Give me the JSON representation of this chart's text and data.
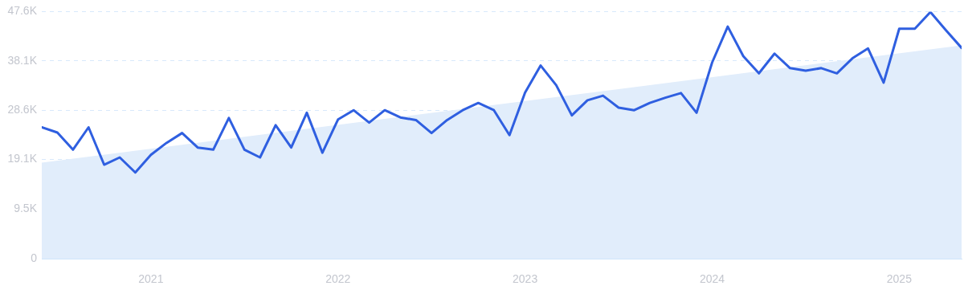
{
  "chart_data": {
    "type": "line",
    "x": [
      "2020-06",
      "2020-07",
      "2020-08",
      "2020-09",
      "2020-10",
      "2020-11",
      "2020-12",
      "2021-01",
      "2021-02",
      "2021-03",
      "2021-04",
      "2021-05",
      "2021-06",
      "2021-07",
      "2021-08",
      "2021-09",
      "2021-10",
      "2021-11",
      "2021-12",
      "2022-01",
      "2022-02",
      "2022-03",
      "2022-04",
      "2022-05",
      "2022-06",
      "2022-07",
      "2022-08",
      "2022-09",
      "2022-10",
      "2022-11",
      "2022-12",
      "2023-01",
      "2023-02",
      "2023-03",
      "2023-04",
      "2023-05",
      "2023-06",
      "2023-07",
      "2023-08",
      "2023-09",
      "2023-10",
      "2023-11",
      "2023-12",
      "2024-01",
      "2024-02",
      "2024-03",
      "2024-04",
      "2024-05",
      "2024-06",
      "2024-07",
      "2024-08",
      "2024-09",
      "2024-10",
      "2024-11",
      "2024-12",
      "2025-01",
      "2025-02",
      "2025-03",
      "2025-04",
      "2025-05"
    ],
    "series": [
      {
        "type": "area",
        "x": [
          "2020-06",
          "2025-05"
        ],
        "values": [
          18.5,
          41.1
        ],
        "color": "#e1edfb"
      },
      {
        "type": "line",
        "color": "#2f5fe0",
        "values": [
          25.3,
          24.3,
          21.0,
          25.3,
          18.1,
          19.5,
          16.6,
          20.0,
          22.3,
          24.2,
          21.4,
          21.0,
          27.1,
          21.0,
          19.5,
          25.7,
          21.4,
          28.1,
          20.4,
          26.8,
          28.6,
          26.2,
          28.6,
          27.2,
          26.7,
          24.2,
          26.7,
          28.6,
          30.0,
          28.6,
          23.8,
          32.0,
          37.2,
          33.4,
          27.6,
          30.5,
          31.4,
          29.1,
          28.6,
          30.0,
          31.0,
          31.9,
          28.1,
          37.8,
          44.7,
          39.0,
          35.7,
          39.5,
          36.7,
          36.2,
          36.7,
          35.7,
          38.6,
          40.5,
          33.9,
          44.3,
          44.3,
          47.5,
          44.0,
          40.6
        ]
      }
    ],
    "xlim": [
      "2020-06",
      "2025-05"
    ],
    "xticks": [
      "2021",
      "2022",
      "2023",
      "2024",
      "2025"
    ],
    "ylim": [
      0,
      47.6
    ],
    "yticks": [
      0,
      {
        "value": 9.5,
        "label": "9.5K"
      },
      {
        "value": 19.1,
        "label": "19.1K"
      },
      {
        "value": 28.6,
        "label": "28.6K"
      },
      {
        "value": 38.1,
        "label": "38.1K"
      },
      {
        "value": 47.6,
        "label": "47.6K"
      }
    ],
    "grid": "y",
    "legend": false,
    "marker": "none",
    "line_style": "solid"
  }
}
